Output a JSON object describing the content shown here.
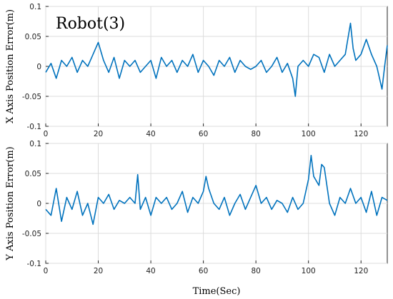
{
  "chart_data": [
    {
      "type": "line",
      "title": "Robot(3)",
      "ylabel": "X Axis Position Error(m)",
      "xlabel": "",
      "xlim": [
        0,
        130
      ],
      "ylim": [
        -0.1,
        0.1
      ],
      "grid": true,
      "x_ticks": [
        "0",
        "20",
        "40",
        "60",
        "80",
        "100",
        "120"
      ],
      "y_ticks": [
        "-0.1",
        "-0.05",
        "0",
        "0.05",
        "0.1"
      ],
      "color": "#0072BD",
      "series": [
        {
          "x": [
            0,
            2,
            4,
            6,
            8,
            10,
            12,
            14,
            16,
            18,
            20,
            22,
            24,
            26,
            28,
            30,
            32,
            34,
            36,
            38,
            40,
            42,
            44,
            46,
            48,
            50,
            52,
            54,
            56,
            58,
            60,
            62,
            64,
            66,
            68,
            70,
            72,
            74,
            76,
            78,
            80,
            82,
            84,
            86,
            88,
            90,
            92,
            94,
            95,
            96,
            98,
            100,
            102,
            104,
            106,
            108,
            110,
            112,
            114,
            116,
            117,
            118,
            120,
            122,
            124,
            126,
            128,
            129,
            130
          ],
          "y": [
            -0.01,
            0.005,
            -0.02,
            0.01,
            0.0,
            0.015,
            -0.01,
            0.01,
            0.0,
            0.02,
            0.04,
            0.01,
            -0.01,
            0.015,
            -0.02,
            0.01,
            0.0,
            0.01,
            -0.01,
            0.0,
            0.01,
            -0.02,
            0.015,
            0.0,
            0.01,
            -0.01,
            0.01,
            0.0,
            0.02,
            -0.01,
            0.01,
            0.0,
            -0.015,
            0.01,
            0.0,
            0.015,
            -0.01,
            0.01,
            0.0,
            -0.005,
            0.0,
            0.01,
            -0.01,
            0.0,
            0.015,
            -0.01,
            0.005,
            -0.02,
            -0.05,
            0.0,
            0.01,
            0.0,
            0.02,
            0.015,
            -0.01,
            0.02,
            0.0,
            0.01,
            0.02,
            0.072,
            0.03,
            0.01,
            0.02,
            0.045,
            0.02,
            0.0,
            -0.038,
            0.0,
            0.035
          ]
        }
      ]
    },
    {
      "type": "line",
      "title": "",
      "ylabel": "Y Axis Position Error(m)",
      "xlabel": "Time(Sec)",
      "xlim": [
        0,
        130
      ],
      "ylim": [
        -0.1,
        0.1
      ],
      "grid": true,
      "x_ticks": [
        "0",
        "20",
        "40",
        "60",
        "80",
        "100",
        "120"
      ],
      "y_ticks": [
        "-0.1",
        "-0.05",
        "0",
        "0.05",
        "0.1"
      ],
      "color": "#0072BD",
      "series": [
        {
          "x": [
            0,
            2,
            4,
            6,
            8,
            10,
            12,
            14,
            16,
            18,
            20,
            22,
            24,
            26,
            28,
            30,
            32,
            34,
            35,
            36,
            38,
            40,
            42,
            44,
            46,
            48,
            50,
            52,
            54,
            56,
            58,
            60,
            61,
            62,
            64,
            66,
            68,
            70,
            72,
            74,
            76,
            78,
            80,
            82,
            84,
            86,
            88,
            90,
            92,
            94,
            96,
            98,
            100,
            101,
            102,
            104,
            105,
            106,
            108,
            110,
            112,
            114,
            116,
            118,
            120,
            122,
            124,
            126,
            128,
            130
          ],
          "y": [
            -0.01,
            -0.02,
            0.025,
            -0.03,
            0.01,
            -0.01,
            0.02,
            -0.02,
            0.0,
            -0.035,
            0.01,
            0.0,
            0.015,
            -0.01,
            0.005,
            0.0,
            0.01,
            0.0,
            0.048,
            -0.01,
            0.01,
            -0.02,
            0.01,
            0.0,
            0.01,
            -0.01,
            0.0,
            0.02,
            -0.015,
            0.01,
            0.0,
            0.02,
            0.045,
            0.025,
            0.0,
            -0.01,
            0.01,
            -0.02,
            0.0,
            0.015,
            -0.01,
            0.01,
            0.03,
            0.0,
            0.01,
            -0.01,
            0.005,
            0.0,
            -0.015,
            0.01,
            -0.01,
            0.0,
            0.04,
            0.08,
            0.045,
            0.03,
            0.065,
            0.06,
            0.0,
            -0.02,
            0.01,
            0.0,
            0.025,
            0.0,
            0.01,
            -0.015,
            0.02,
            -0.02,
            0.01,
            0.005
          ]
        }
      ]
    }
  ]
}
